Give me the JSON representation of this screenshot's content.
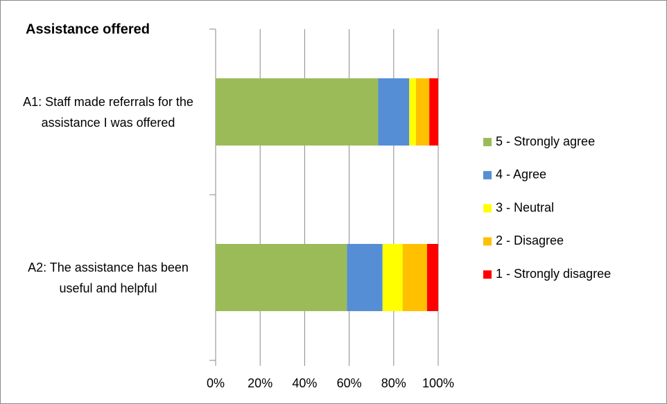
{
  "chart_data": {
    "type": "stacked-bar-horizontal",
    "title": "Assistance offered",
    "categories": [
      "A1: Staff made referrals for the assistance I was offered",
      "A2: The assistance has been useful and helpful"
    ],
    "series": [
      {
        "name": "5 - Strongly agree",
        "color": "#9bbb59",
        "values": [
          73,
          59
        ]
      },
      {
        "name": "4 - Agree",
        "color": "#558ed5",
        "values": [
          14,
          16
        ]
      },
      {
        "name": "3 - Neutral",
        "color": "#ffff00",
        "values": [
          3,
          9
        ]
      },
      {
        "name": "2 - Disagree",
        "color": "#ffc000",
        "values": [
          6,
          11
        ]
      },
      {
        "name": "1 - Strongly disagree",
        "color": "#ff0000",
        "values": [
          4,
          5
        ]
      }
    ],
    "xlim": [
      0,
      100
    ],
    "xticks": [
      {
        "value": 0,
        "label": "0%"
      },
      {
        "value": 20,
        "label": "20%"
      },
      {
        "value": 40,
        "label": "40%"
      },
      {
        "value": 60,
        "label": "60%"
      },
      {
        "value": 80,
        "label": "80%"
      },
      {
        "value": 100,
        "label": "100%"
      }
    ],
    "grid": true,
    "legend": "right"
  }
}
